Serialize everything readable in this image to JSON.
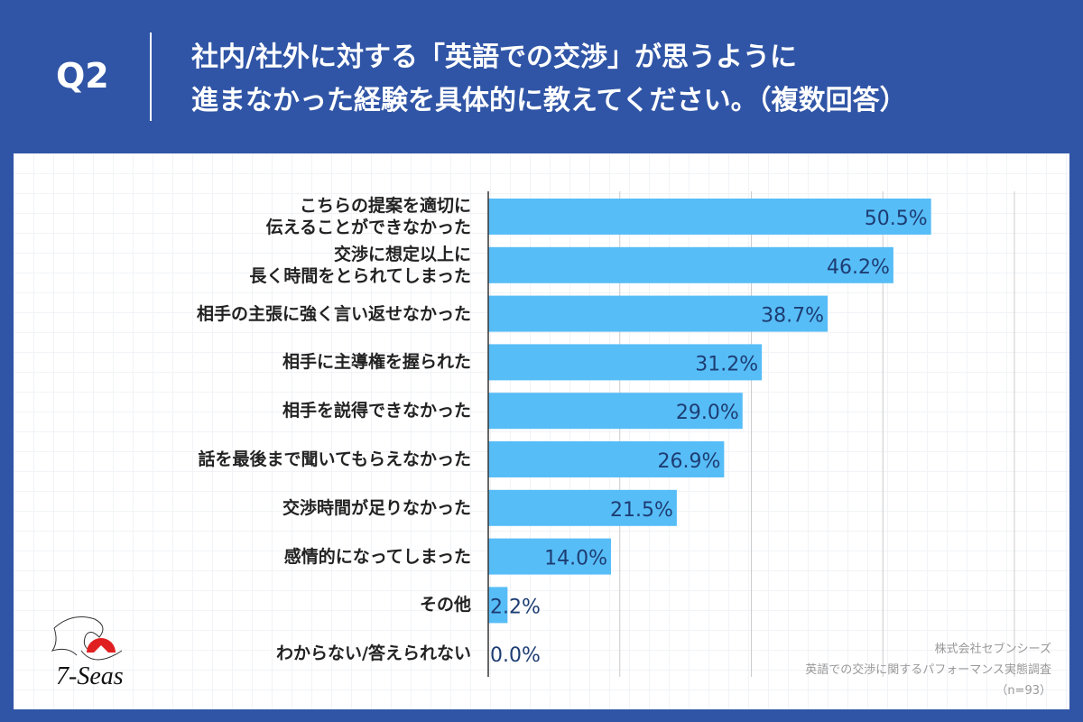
{
  "header": {
    "question_number": "Q2",
    "title": "社内/社外に対する「英語での交渉」が思うように\n進まなかった経験を具体的に教えてください。（複数回答）"
  },
  "chart_data": {
    "type": "bar",
    "orientation": "horizontal",
    "categories": [
      "こちらの提案を適切に\n伝えることができなかった",
      "交渉に想定以上に\n長く時間をとられてしまった",
      "相手の主張に強く言い返せなかった",
      "相手に主導権を握られた",
      "相手を説得できなかった",
      "話を最後まで聞いてもらえなかった",
      "交渉時間が足りなかった",
      "感情的になってしまった",
      "その他",
      "わからない/答えられない"
    ],
    "values": [
      50.5,
      46.2,
      38.7,
      31.2,
      29.0,
      26.9,
      21.5,
      14.0,
      2.2,
      0.0
    ],
    "value_labels": [
      "50.5%",
      "46.2%",
      "38.7%",
      "31.2%",
      "29.0%",
      "26.9%",
      "21.5%",
      "14.0%",
      "2.2%",
      "0.0%"
    ],
    "xlim": [
      0,
      60
    ],
    "grid": true,
    "gridlines": [
      15,
      30,
      45,
      60
    ],
    "bar_color": "#57bdf7",
    "label_color": "#1d3d73"
  },
  "notes": {
    "company": "株式会社セブンシーズ",
    "survey": "英語での交渉に関するパフォーマンス実態調査",
    "sample": "（n=93）"
  },
  "logo": {
    "text": "7-Seas",
    "sun_color": "#e02020"
  },
  "colors": {
    "background": "#3055a6"
  }
}
